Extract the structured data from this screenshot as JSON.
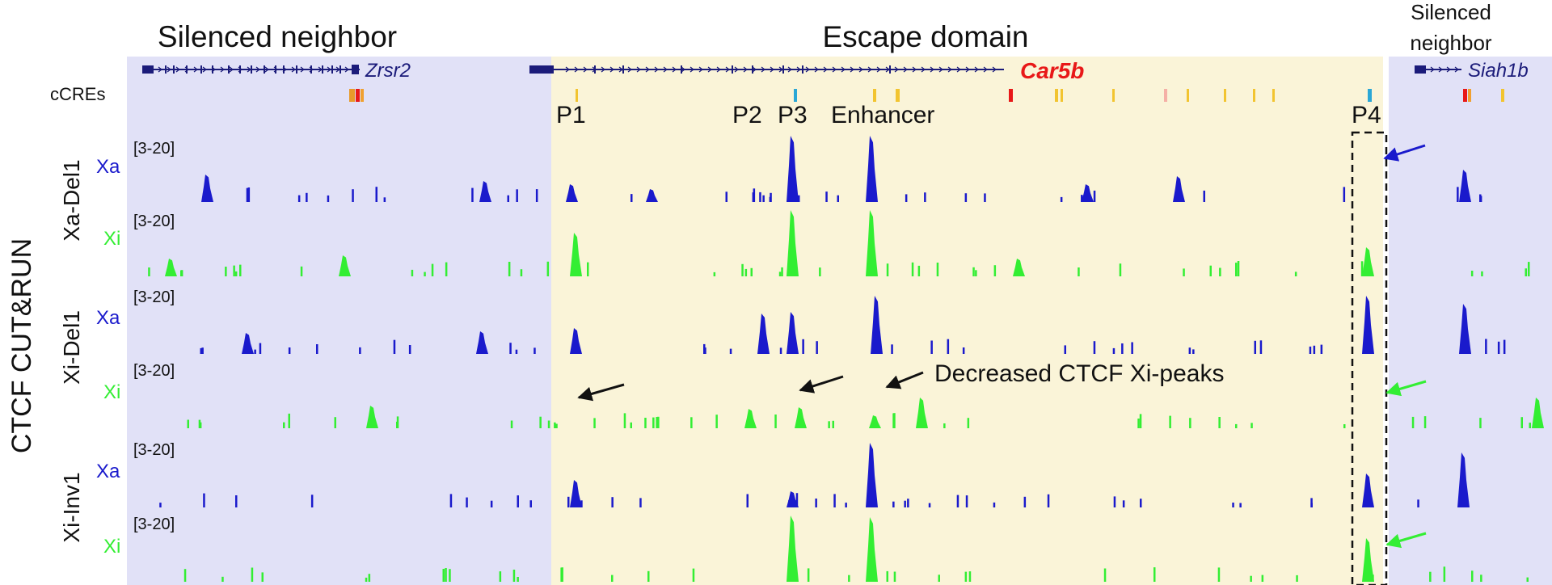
{
  "regions": {
    "left": {
      "label": "Silenced neighbor",
      "color": "#e1e1f7"
    },
    "middle": {
      "label": "Escape domain",
      "color": "#faf4d8"
    },
    "right": {
      "label_line1": "Silenced",
      "label_line2": "neighbor",
      "color": "#e1e1f7"
    }
  },
  "genes": [
    {
      "name": "Zrsr2",
      "color": "#1b1b7a"
    },
    {
      "name": "Car5b",
      "color": "#e81818"
    },
    {
      "name": "Siah1b",
      "color": "#1b1b7a"
    }
  ],
  "ccre_label": "cCREs",
  "feature_labels": [
    "P1",
    "P2",
    "P3",
    "Enhancer",
    "P4"
  ],
  "left_axis_title": "CTCF CUT&RUN",
  "groups": [
    "Xa-Del1",
    "Xi-Del1",
    "Xi-Inv1"
  ],
  "tracks": [
    {
      "allele": "Xa",
      "range": "[3-20]",
      "color": "#1a1acc"
    },
    {
      "allele": "Xi",
      "range": "[3-20]",
      "color": "#33ee33"
    },
    {
      "allele": "Xa",
      "range": "[3-20]",
      "color": "#1a1acc"
    },
    {
      "allele": "Xi",
      "range": "[3-20]",
      "color": "#33ee33"
    },
    {
      "allele": "Xa",
      "range": "[3-20]",
      "color": "#1a1acc"
    },
    {
      "allele": "Xi",
      "range": "[3-20]",
      "color": "#33ee33"
    }
  ],
  "annotation": "Decreased CTCF Xi-peaks",
  "colors": {
    "blue_arrow": "#1a1acc",
    "green_arrow": "#33ee33",
    "black_arrow": "#111111"
  }
}
